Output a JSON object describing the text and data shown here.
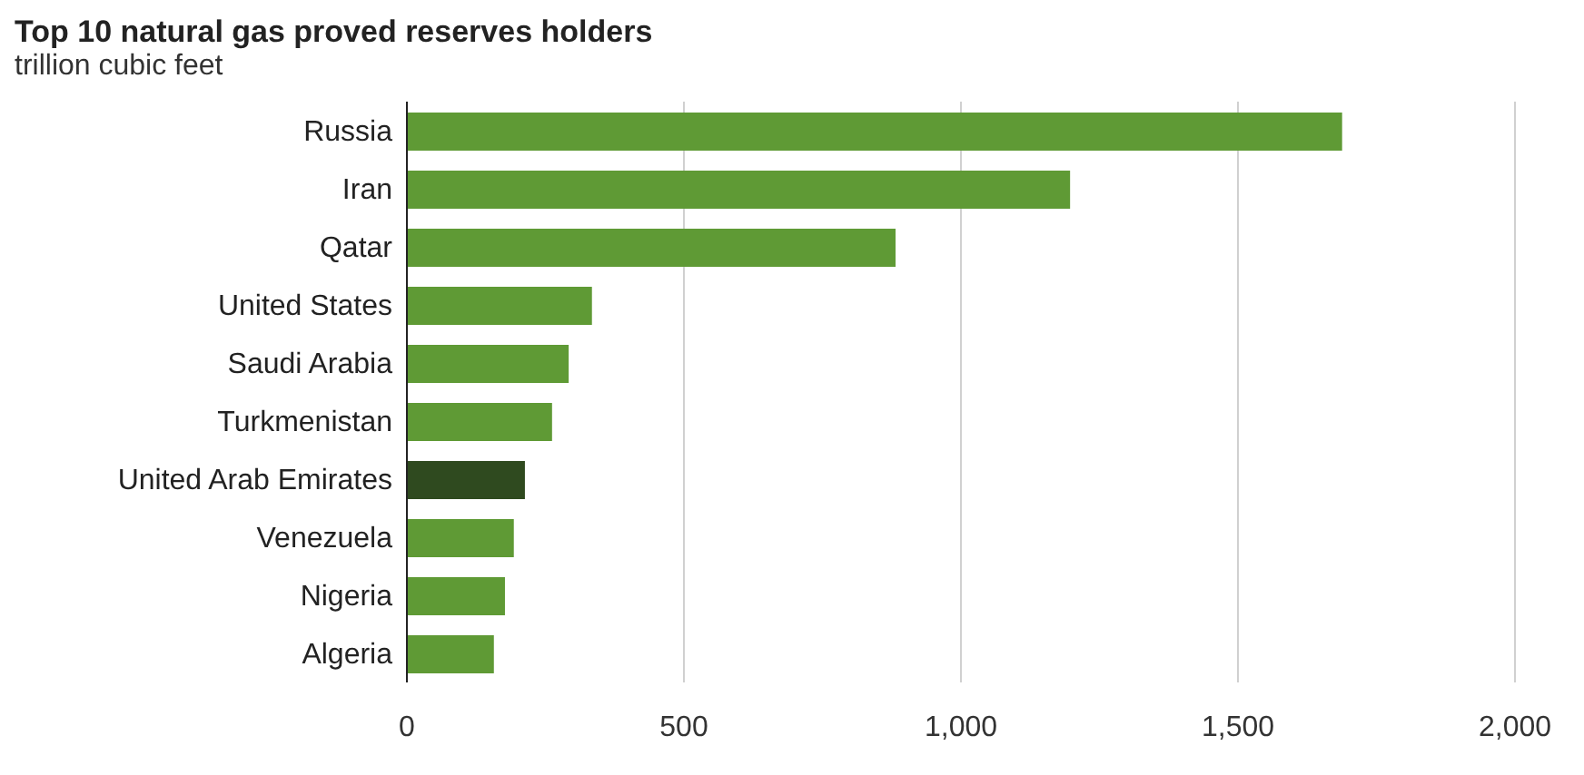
{
  "chart_data": {
    "type": "bar",
    "orientation": "horizontal",
    "title": "Top 10 natural gas proved reserves holders",
    "subtitle": "trillion cubic feet",
    "categories": [
      "Russia",
      "Iran",
      "Qatar",
      "United States",
      "Saudi Arabia",
      "Turkmenistan",
      "United Arab Emirates",
      "Venezuela",
      "Nigeria",
      "Algeria"
    ],
    "values": [
      1688,
      1197,
      882,
      334,
      292,
      262,
      213,
      193,
      177,
      157
    ],
    "colors": [
      "#5f9a35",
      "#5f9a35",
      "#5f9a35",
      "#5f9a35",
      "#5f9a35",
      "#5f9a35",
      "#2f4a1f",
      "#5f9a35",
      "#5f9a35",
      "#5f9a35"
    ],
    "xlim": [
      0,
      2000
    ],
    "xticks": [
      {
        "value": 0,
        "label": "0"
      },
      {
        "value": 500,
        "label": "500"
      },
      {
        "value": 1000,
        "label": "1,000"
      },
      {
        "value": 1500,
        "label": "1,500"
      },
      {
        "value": 2000,
        "label": "2,000"
      }
    ],
    "grid": "x",
    "legend": false
  }
}
